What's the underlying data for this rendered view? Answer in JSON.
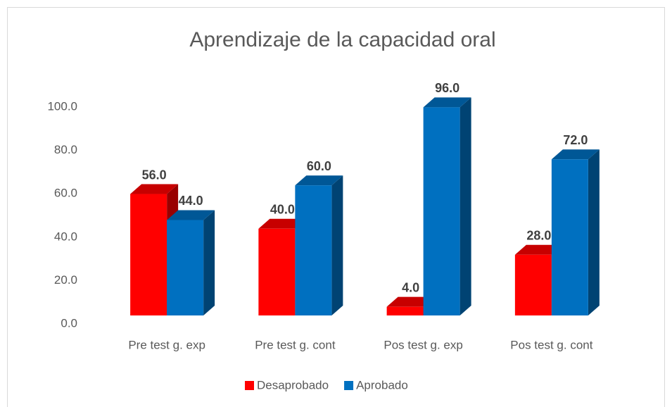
{
  "chart_data": {
    "type": "bar3d",
    "title": "Aprendizaje de la capacidad oral",
    "categories": [
      "Pre test g. exp",
      "Pre test g. cont",
      "Pos test g. exp",
      "Pos test g. cont"
    ],
    "series": [
      {
        "name": "Desaprobado",
        "color": "#ff0000",
        "values": [
          56,
          40,
          4,
          28
        ],
        "value_labels": [
          "56.0",
          "40.0",
          "4.0",
          "28.0"
        ]
      },
      {
        "name": "Aprobado",
        "color": "#0070c0",
        "values": [
          44,
          60,
          96,
          72
        ],
        "value_labels": [
          "44.0",
          "60.0",
          "96.0",
          "72.0"
        ]
      }
    ],
    "ylim": [
      0,
      100
    ],
    "yticks": [
      {
        "value": 0,
        "label": "0.0"
      },
      {
        "value": 20,
        "label": "20.0"
      },
      {
        "value": 40,
        "label": "40.0"
      },
      {
        "value": 60,
        "label": "60.0"
      },
      {
        "value": 80,
        "label": "80.0"
      },
      {
        "value": 100,
        "label": "100.0"
      }
    ],
    "legend": "bottom"
  }
}
